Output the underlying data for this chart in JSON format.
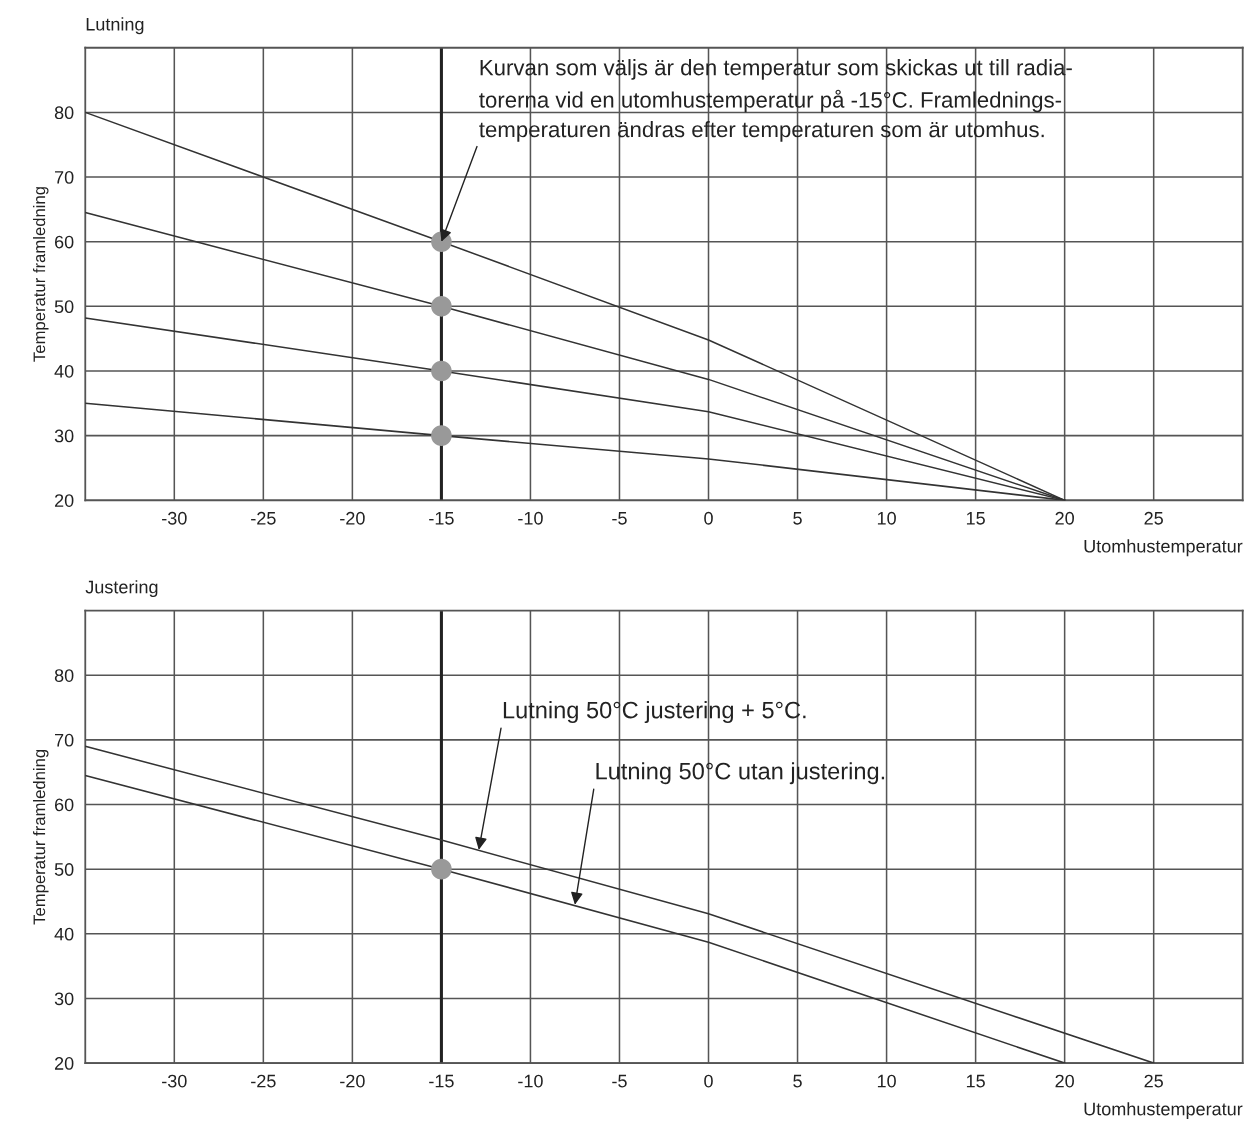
{
  "chart_data": [
    {
      "type": "line",
      "title": "Lutning",
      "xlabel": "Utomhustemperatur",
      "ylabel": "Temperatur framledning",
      "xlim": [
        -35,
        30
      ],
      "xticks": [
        -30,
        -25,
        -20,
        -15,
        -10,
        -5,
        0,
        5,
        10,
        15,
        20,
        25
      ],
      "ylim": [
        20,
        90
      ],
      "yticks": [
        20,
        30,
        40,
        50,
        60,
        70,
        80
      ],
      "grid": true,
      "marker": "none",
      "line_style": "solid",
      "series": [
        {
          "color": "#333333",
          "x": [
            -35,
            -15,
            0,
            20
          ],
          "values": [
            80,
            60,
            44.8,
            20
          ]
        },
        {
          "color": "#333333",
          "x": [
            -35,
            -15,
            0,
            20
          ],
          "values": [
            64.5,
            50,
            38.7,
            20
          ]
        },
        {
          "color": "#333333",
          "x": [
            -35,
            -15,
            0,
            20
          ],
          "values": [
            48.2,
            40,
            33.7,
            20
          ]
        },
        {
          "color": "#333333",
          "x": [
            -35,
            -15,
            0,
            20
          ],
          "values": [
            35.0,
            30,
            26.4,
            20
          ]
        },
        {
          "type": "scatter",
          "marker": "circle",
          "color": "#999999",
          "x": [
            -15,
            -15,
            -15,
            -15
          ],
          "values": [
            60,
            50,
            40,
            30
          ]
        }
      ],
      "ref_lines": [
        {
          "axis": "x",
          "value": -15,
          "label": null,
          "color": "#222222"
        }
      ],
      "annotations": [
        {
          "text": "Kurvan som väljs är den temperatur som skickas ut till radia-\ntorerna vid en utomhustemperatur på -15°C. Framlednings-\ntemperaturen ändras efter temperaturen som är utomhus.",
          "x": -15,
          "y": 60
        }
      ]
    },
    {
      "type": "line",
      "title": "Justering",
      "xlabel": "Utomhustemperatur",
      "ylabel": "Temperatur framledning",
      "xlim": [
        -35,
        30
      ],
      "xticks": [
        -30,
        -25,
        -20,
        -15,
        -10,
        -5,
        0,
        5,
        10,
        15,
        20,
        25
      ],
      "ylim": [
        20,
        90
      ],
      "yticks": [
        20,
        30,
        40,
        50,
        60,
        70,
        80
      ],
      "grid": true,
      "marker": "none",
      "line_style": "solid",
      "series": [
        {
          "color": "#333333",
          "x": [
            -35,
            -15,
            0,
            25
          ],
          "values": [
            69,
            54.5,
            43.1,
            20
          ]
        },
        {
          "color": "#333333",
          "x": [
            -35,
            -15,
            0,
            20
          ],
          "values": [
            64.5,
            50,
            38.7,
            20
          ]
        },
        {
          "type": "scatter",
          "marker": "circle",
          "color": "#999999",
          "x": [
            -15
          ],
          "values": [
            50
          ]
        }
      ],
      "ref_lines": [
        {
          "axis": "x",
          "value": -15,
          "label": null,
          "color": "#222222"
        }
      ],
      "annotations": [
        {
          "text": "Lutning 50°C justering + 5°C.",
          "x": -12.9,
          "y": 53.0
        },
        {
          "text": "Lutning 50°C utan justering.",
          "x": -7.5,
          "y": 44.5
        }
      ]
    }
  ]
}
